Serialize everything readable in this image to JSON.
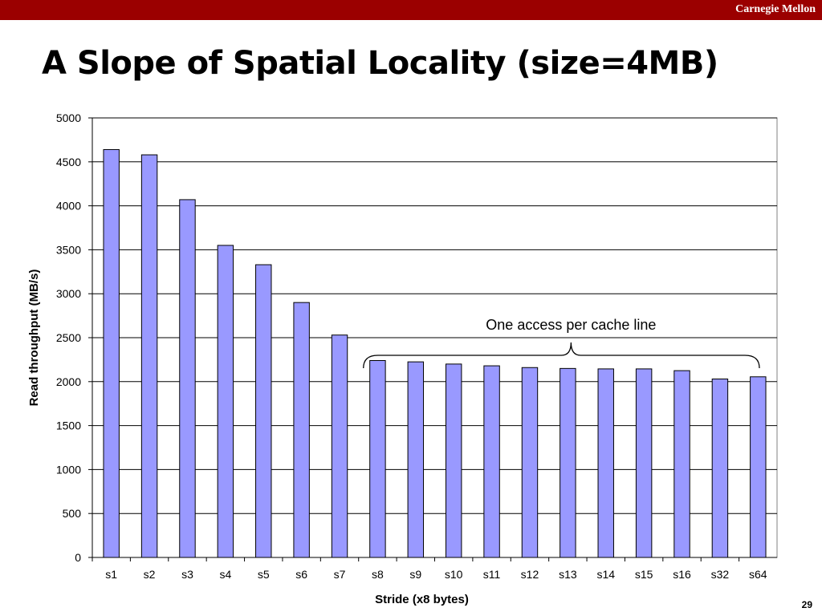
{
  "header": {
    "brand": "Carnegie Mellon",
    "bar_color": "#9b0000"
  },
  "slide": {
    "title": "A Slope of Spatial Locality (size=4MB)",
    "page_number": "29"
  },
  "chart_data": {
    "type": "bar",
    "categories": [
      "s1",
      "s2",
      "s3",
      "s4",
      "s5",
      "s6",
      "s7",
      "s8",
      "s9",
      "s10",
      "s11",
      "s12",
      "s13",
      "s14",
      "s15",
      "s16",
      "s32",
      "s64"
    ],
    "values": [
      4640,
      4580,
      4070,
      3550,
      3330,
      2900,
      2530,
      2240,
      2225,
      2200,
      2180,
      2160,
      2150,
      2145,
      2145,
      2125,
      2030,
      2055
    ],
    "xlabel": "Stride (x8 bytes)",
    "ylabel": "Read throughput (MB/s)",
    "ylim": [
      0,
      5000
    ],
    "yticks": [
      0,
      500,
      1000,
      1500,
      2000,
      2500,
      3000,
      3500,
      4000,
      4500,
      5000
    ],
    "grid": true,
    "bar_color": "#9999ff",
    "annotation": {
      "text": "One access per cache line",
      "from_category": "s8",
      "to_category": "s64"
    }
  }
}
